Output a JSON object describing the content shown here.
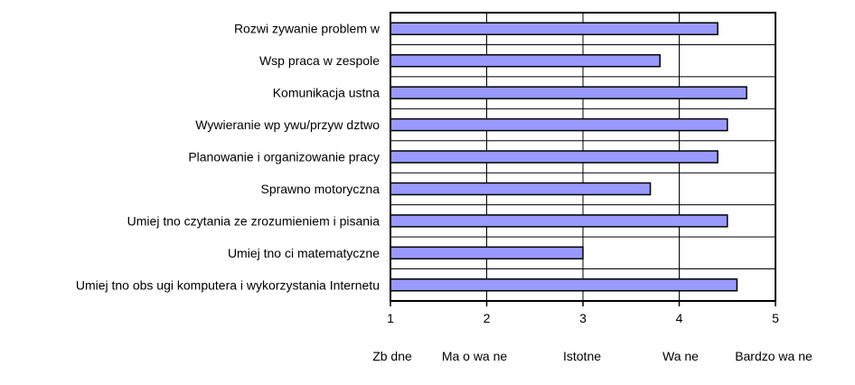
{
  "chart_data": {
    "type": "bar",
    "orientation": "horizontal",
    "categories": [
      "Rozwi zywanie problem w",
      "Wsp praca w zespole",
      "Komunikacja ustna",
      "Wywieranie wp ywu/przyw dztwo",
      "Planowanie i organizowanie pracy",
      "Sprawno motoryczna",
      "Umiej tno czytania ze zrozumieniem i pisania",
      "Umiej tno ci matematyczne",
      "Umiej tno obs ugi komputera i wykorzystania Internetu"
    ],
    "values": [
      4.4,
      3.8,
      4.7,
      4.5,
      4.4,
      3.7,
      4.5,
      3.0,
      4.6
    ],
    "xlim": [
      1,
      5
    ],
    "xticks": [
      1,
      2,
      3,
      4,
      5
    ],
    "xtick_labels": [
      "1",
      "2",
      "3",
      "4",
      "5"
    ],
    "scale_labels": [
      "Zb dne",
      "Ma o wa ne",
      "Istotne",
      "Wa ne",
      "Bardzo wa ne"
    ],
    "grid": true,
    "legend": "none",
    "bar_color": "#9999ff",
    "bar_edge_color": "#000000"
  }
}
